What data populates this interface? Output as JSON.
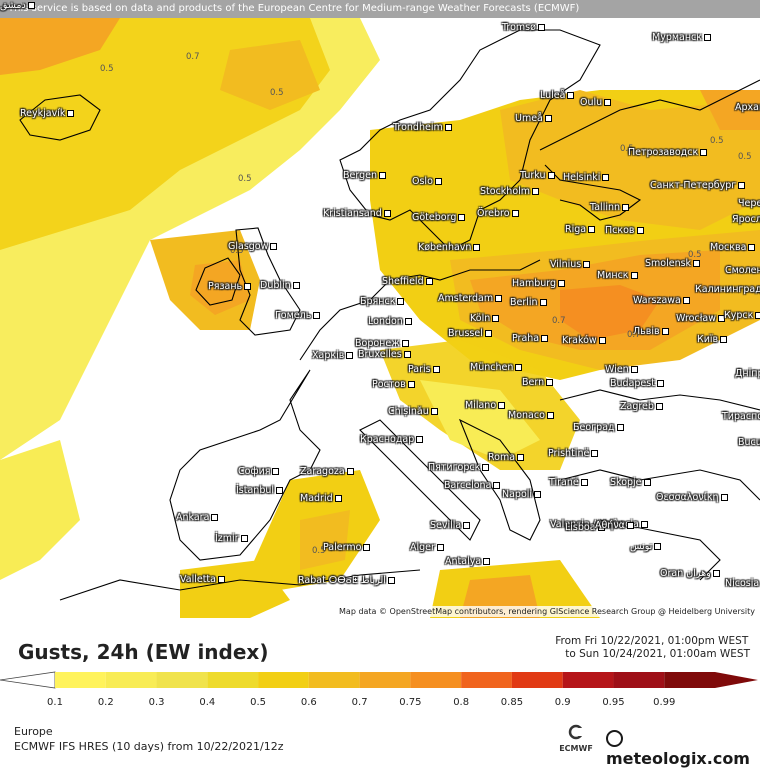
{
  "header": {
    "notice": "This service is based on data and products of the European Centre for Medium-range Weather Forecasts (ECMWF)",
    "attribution": "Map data © OpenStreetMap contributors, rendering GIScience Research Group @ Heidelberg University"
  },
  "legend": {
    "title": "Gusts, 24h (EW index)",
    "valid_from": "From Fri 10/22/2021, 01:00pm WEST",
    "valid_to": "to Sun 10/24/2021, 01:00am WEST",
    "region": "Europe",
    "model": "ECMWF IFS HRES (10 days) from 10/22/2021/12z",
    "ecmwf_label": "ECMWF",
    "brand": "meteologix.com",
    "scale": [
      {
        "value": "0.1",
        "color": "#fff35c"
      },
      {
        "value": "0.2",
        "color": "#f8ec55"
      },
      {
        "value": "0.3",
        "color": "#f0e34c"
      },
      {
        "value": "0.4",
        "color": "#eedb2c"
      },
      {
        "value": "0.5",
        "color": "#f2cf14"
      },
      {
        "value": "0.6",
        "color": "#f2bc20"
      },
      {
        "value": "0.7",
        "color": "#f4a623"
      },
      {
        "value": "0.75",
        "color": "#f58f21"
      },
      {
        "value": "0.8",
        "color": "#f0641e"
      },
      {
        "value": "0.85",
        "color": "#e13a14"
      },
      {
        "value": "0.9",
        "color": "#b51519"
      },
      {
        "value": "0.95",
        "color": "#9e0f17"
      },
      {
        "value": "0.99",
        "color": "#7f0a0a"
      }
    ]
  },
  "map": {
    "contour_labels": [
      "0.5",
      "0.7",
      "0.5",
      "0.5",
      "0.5",
      "0.5",
      "0.5",
      "0.5",
      "0.7",
      "0.7",
      "0.5",
      "0.5"
    ],
    "cities": [
      "Tromsø",
      "Мурманск",
      "Reykjavík",
      "Luleå",
      "Oulu",
      "Архангельск",
      "Umeå",
      "Петрозаводск",
      "Trondheim",
      "Bergen",
      "Oslo",
      "Turku",
      "Helsinki",
      "Санкт-Петербург",
      "Stockholm",
      "Örebro",
      "Череповец",
      "Kristiansand",
      "Göteborg",
      "Tallinn",
      "Ярославль",
      "Glasgow",
      "København",
      "Riga",
      "Псков",
      "Москва",
      "Smolensk",
      "Vilnius",
      "Минск",
      "Смоленск",
      "Рязань",
      "Dublin",
      "Sheffield",
      "Hamburg",
      "Калининград",
      "Брянск",
      "Amsterdam",
      "Berlin",
      "Warszawa",
      "Гомель",
      "London",
      "Köln",
      "Wrocław",
      "Курск",
      "Воронеж",
      "Bruxelles",
      "Brussel",
      "Praha",
      "Kraków",
      "Львів",
      "Київ",
      "Харків",
      "Paris",
      "München",
      "Wien",
      "Дніпропетровськ",
      "Ростов",
      "Bern",
      "Budapest",
      "Chișinău",
      "Milano",
      "Zagreb",
      "Тирасполь",
      "Краснодар",
      "Monaco",
      "Београд",
      "București",
      "Пятигорск",
      "Roma",
      "Prishtinë",
      "София",
      "Zaragoza",
      "Barcelona",
      "Napoli",
      "Tiranë",
      "Skopje",
      "İstanbul",
      "Madrid",
      "Valencia / València",
      "Θεσσαλονίκη",
      "Ankara",
      "Lisboa",
      "Αθήνα",
      "İzmir",
      "Sevilla",
      "Palermo",
      "Alger",
      "تونس",
      "Antalya",
      "Valletta",
      "Rabat ⵔⴱⴰⵟ الرباط",
      "Oran وهران",
      "Nicosia",
      "دمشق"
    ]
  }
}
